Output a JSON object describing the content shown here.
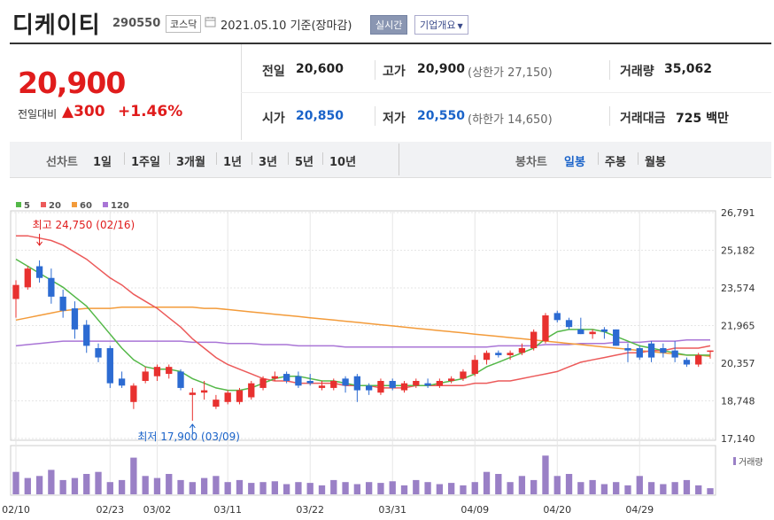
{
  "header": {
    "company_name": "디케이티",
    "stock_code": "290550",
    "market_badge": "코스닥",
    "date_text": "2021.05.10 기준(장마감)",
    "realtime_label": "실시간",
    "overview_label": "기업개요"
  },
  "price": {
    "current": "20,900",
    "prev_label": "전일대비",
    "change": "▲300",
    "rate": "+1.46%"
  },
  "info": {
    "prev_close_label": "전일",
    "prev_close": "20,600",
    "high_label": "고가",
    "high": "20,900",
    "upper_limit": "(상한가 27,150)",
    "volume_label": "거래량",
    "volume": "35,062",
    "open_label": "시가",
    "open": "20,850",
    "low_label": "저가",
    "low": "20,550",
    "lower_limit": "(하한가 14,650)",
    "amount_label": "거래대금",
    "amount": "725 백만"
  },
  "periods": {
    "line_label": "선차트",
    "items": [
      "1일",
      "1주일",
      "3개월",
      "1년",
      "3년",
      "5년",
      "10년"
    ],
    "candle_label": "봉차트",
    "candle_items": [
      "일봉",
      "주봉",
      "월봉"
    ],
    "candle_selected": "일봉"
  },
  "chart_data": {
    "type": "candlestick",
    "legend": [
      "5",
      "20",
      "60",
      "120"
    ],
    "colors": {
      "up": "#e8312f",
      "down": "#2c6bd2",
      "ma5": "#54b848",
      "ma20": "#ec5a5a",
      "ma60": "#f39b3a",
      "ma120": "#a975d6"
    },
    "y_ticks": [
      "26,791",
      "25,182",
      "23,574",
      "21,965",
      "20,357",
      "18,748",
      "17,140"
    ],
    "y_range": [
      17140,
      26791
    ],
    "x_ticks": [
      "02/10",
      "02/23",
      "03/02",
      "03/11",
      "03/22",
      "03/31",
      "04/09",
      "04/20",
      "04/29"
    ],
    "x_tick_index": [
      0,
      8,
      12,
      18,
      25,
      32,
      39,
      46,
      53
    ],
    "annotation_high": "최고 24,750 (02/16)",
    "annotation_low": "최저 17,900 (03/09)",
    "volume_label": "거래량",
    "candles": [
      {
        "o": 23100,
        "h": 23900,
        "l": 22300,
        "c": 23700
      },
      {
        "o": 23600,
        "h": 24500,
        "l": 23500,
        "c": 24400
      },
      {
        "o": 24500,
        "h": 24750,
        "l": 23800,
        "c": 24000
      },
      {
        "o": 24000,
        "h": 24400,
        "l": 22900,
        "c": 23200
      },
      {
        "o": 23200,
        "h": 23500,
        "l": 22300,
        "c": 22600
      },
      {
        "o": 22700,
        "h": 23000,
        "l": 21400,
        "c": 21800
      },
      {
        "o": 22000,
        "h": 22200,
        "l": 20800,
        "c": 21100
      },
      {
        "o": 21000,
        "h": 21200,
        "l": 20400,
        "c": 20600
      },
      {
        "o": 21000,
        "h": 21100,
        "l": 19300,
        "c": 19500
      },
      {
        "o": 19700,
        "h": 20000,
        "l": 19300,
        "c": 19400
      },
      {
        "o": 18700,
        "h": 19500,
        "l": 18400,
        "c": 19400
      },
      {
        "o": 19600,
        "h": 20200,
        "l": 19500,
        "c": 20000
      },
      {
        "o": 19800,
        "h": 20300,
        "l": 19600,
        "c": 20200
      },
      {
        "o": 19900,
        "h": 20300,
        "l": 19700,
        "c": 20200
      },
      {
        "o": 20000,
        "h": 20100,
        "l": 19200,
        "c": 19300
      },
      {
        "o": 19000,
        "h": 19300,
        "l": 17900,
        "c": 19100
      },
      {
        "o": 19100,
        "h": 19600,
        "l": 18800,
        "c": 19200
      },
      {
        "o": 18500,
        "h": 19000,
        "l": 18400,
        "c": 18800
      },
      {
        "o": 18700,
        "h": 19200,
        "l": 18600,
        "c": 19100
      },
      {
        "o": 18700,
        "h": 19300,
        "l": 18600,
        "c": 19200
      },
      {
        "o": 18900,
        "h": 19600,
        "l": 18800,
        "c": 19500
      },
      {
        "o": 19300,
        "h": 19800,
        "l": 19200,
        "c": 19700
      },
      {
        "o": 19700,
        "h": 20000,
        "l": 19600,
        "c": 19800
      },
      {
        "o": 19900,
        "h": 20000,
        "l": 19500,
        "c": 19600
      },
      {
        "o": 19800,
        "h": 20000,
        "l": 19300,
        "c": 19400
      },
      {
        "o": 19600,
        "h": 19900,
        "l": 19400,
        "c": 19500
      },
      {
        "o": 19300,
        "h": 19600,
        "l": 19200,
        "c": 19400
      },
      {
        "o": 19300,
        "h": 19700,
        "l": 19200,
        "c": 19600
      },
      {
        "o": 19700,
        "h": 19800,
        "l": 19100,
        "c": 19400
      },
      {
        "o": 19800,
        "h": 19900,
        "l": 18700,
        "c": 19200
      },
      {
        "o": 19400,
        "h": 19500,
        "l": 19000,
        "c": 19200
      },
      {
        "o": 19100,
        "h": 19700,
        "l": 19000,
        "c": 19600
      },
      {
        "o": 19600,
        "h": 19700,
        "l": 19200,
        "c": 19300
      },
      {
        "o": 19200,
        "h": 19600,
        "l": 19100,
        "c": 19500
      },
      {
        "o": 19400,
        "h": 19700,
        "l": 19300,
        "c": 19600
      },
      {
        "o": 19500,
        "h": 19700,
        "l": 19300,
        "c": 19400
      },
      {
        "o": 19400,
        "h": 19700,
        "l": 19300,
        "c": 19600
      },
      {
        "o": 19600,
        "h": 19800,
        "l": 19500,
        "c": 19700
      },
      {
        "o": 19700,
        "h": 20100,
        "l": 19600,
        "c": 20000
      },
      {
        "o": 19900,
        "h": 20700,
        "l": 19800,
        "c": 20500
      },
      {
        "o": 20500,
        "h": 20900,
        "l": 20300,
        "c": 20800
      },
      {
        "o": 20800,
        "h": 20900,
        "l": 20600,
        "c": 20700
      },
      {
        "o": 20700,
        "h": 20900,
        "l": 20500,
        "c": 20800
      },
      {
        "o": 20800,
        "h": 21200,
        "l": 20700,
        "c": 21000
      },
      {
        "o": 21000,
        "h": 21800,
        "l": 20900,
        "c": 21700
      },
      {
        "o": 21300,
        "h": 22500,
        "l": 21200,
        "c": 22400
      },
      {
        "o": 22500,
        "h": 22600,
        "l": 22100,
        "c": 22200
      },
      {
        "o": 22200,
        "h": 22300,
        "l": 21800,
        "c": 21900
      },
      {
        "o": 21800,
        "h": 22300,
        "l": 21600,
        "c": 21600
      },
      {
        "o": 21600,
        "h": 21800,
        "l": 21400,
        "c": 21700
      },
      {
        "o": 21800,
        "h": 21900,
        "l": 21400,
        "c": 21700
      },
      {
        "o": 21800,
        "h": 21800,
        "l": 21100,
        "c": 21100
      },
      {
        "o": 21000,
        "h": 21200,
        "l": 20400,
        "c": 20900
      },
      {
        "o": 21000,
        "h": 21100,
        "l": 20500,
        "c": 20600
      },
      {
        "o": 21200,
        "h": 21300,
        "l": 20400,
        "c": 20600
      },
      {
        "o": 21000,
        "h": 21200,
        "l": 20600,
        "c": 20800
      },
      {
        "o": 20900,
        "h": 21300,
        "l": 20400,
        "c": 20600
      },
      {
        "o": 20500,
        "h": 20600,
        "l": 20200,
        "c": 20300
      },
      {
        "o": 20300,
        "h": 20800,
        "l": 20200,
        "c": 20700
      },
      {
        "o": 20850,
        "h": 20900,
        "l": 20550,
        "c": 20900
      }
    ],
    "volumes": [
      55,
      40,
      45,
      60,
      35,
      40,
      50,
      55,
      30,
      35,
      90,
      45,
      40,
      50,
      35,
      30,
      40,
      45,
      30,
      35,
      28,
      30,
      32,
      25,
      30,
      28,
      22,
      35,
      30,
      25,
      30,
      28,
      32,
      22,
      35,
      30,
      25,
      28,
      22,
      30,
      55,
      50,
      30,
      45,
      35,
      95,
      45,
      50,
      30,
      35,
      25,
      30,
      22,
      45,
      30,
      25,
      30,
      35,
      22,
      15
    ],
    "ma5": [
      24800,
      24500,
      24200,
      23900,
      23600,
      23200,
      22800,
      22200,
      21600,
      21000,
      20500,
      20200,
      20100,
      20100,
      20000,
      19700,
      19500,
      19300,
      19200,
      19200,
      19300,
      19500,
      19700,
      19800,
      19800,
      19700,
      19600,
      19600,
      19500,
      19400,
      19400,
      19400,
      19400,
      19400,
      19400,
      19400,
      19500,
      19600,
      19700,
      19900,
      20200,
      20400,
      20600,
      20800,
      21000,
      21400,
      21700,
      21800,
      21800,
      21800,
      21700,
      21500,
      21300,
      21100,
      21000,
      20900,
      20800,
      20700,
      20700,
      20700
    ],
    "ma20": [
      25800,
      25800,
      25700,
      25600,
      25400,
      25100,
      24800,
      24400,
      24000,
      23700,
      23300,
      23000,
      22700,
      22300,
      21900,
      21400,
      21000,
      20600,
      20300,
      20100,
      19900,
      19700,
      19600,
      19600,
      19500,
      19500,
      19500,
      19500,
      19400,
      19400,
      19400,
      19300,
      19300,
      19300,
      19400,
      19400,
      19400,
      19400,
      19400,
      19500,
      19500,
      19600,
      19600,
      19700,
      19800,
      19900,
      20000,
      20200,
      20400,
      20500,
      20600,
      20700,
      20800,
      20800,
      20900,
      20900,
      21000,
      21000,
      21000,
      21100
    ],
    "ma60": [
      22200,
      22300,
      22400,
      22500,
      22600,
      22650,
      22700,
      22700,
      22700,
      22750,
      22750,
      22750,
      22750,
      22750,
      22750,
      22750,
      22700,
      22700,
      22650,
      22600,
      22550,
      22500,
      22450,
      22400,
      22350,
      22300,
      22250,
      22200,
      22150,
      22100,
      22050,
      22000,
      21950,
      21900,
      21850,
      21800,
      21750,
      21700,
      21650,
      21600,
      21550,
      21500,
      21450,
      21400,
      21350,
      21300,
      21250,
      21200,
      21150,
      21100,
      21050,
      21000,
      20950,
      20900,
      20850,
      20800,
      20750,
      20700,
      20700,
      20650
    ],
    "ma120": [
      21100,
      21150,
      21200,
      21250,
      21300,
      21300,
      21300,
      21300,
      21300,
      21300,
      21300,
      21300,
      21300,
      21300,
      21300,
      21250,
      21250,
      21250,
      21200,
      21200,
      21200,
      21150,
      21150,
      21150,
      21100,
      21100,
      21100,
      21100,
      21050,
      21050,
      21050,
      21050,
      21050,
      21050,
      21050,
      21050,
      21050,
      21050,
      21050,
      21050,
      21050,
      21100,
      21100,
      21100,
      21100,
      21150,
      21150,
      21150,
      21200,
      21200,
      21200,
      21250,
      21250,
      21250,
      21300,
      21300,
      21300,
      21350,
      21350,
      21350
    ]
  }
}
